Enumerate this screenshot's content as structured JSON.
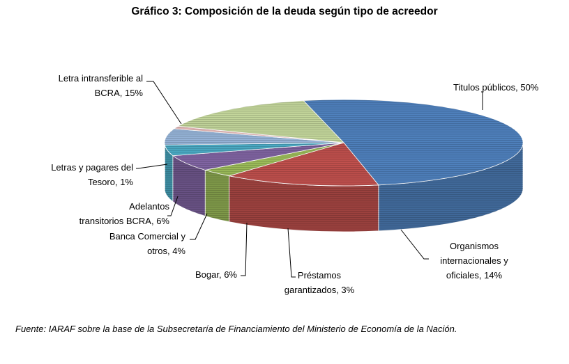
{
  "chart_data": {
    "type": "pie",
    "title": "Gráfico 3: Composición de la deuda según tipo de acreedor",
    "slices": [
      {
        "name": "Titulos públicos",
        "value": 50,
        "label": [
          "Titulos públicos, 50%"
        ],
        "color": "#4f81bd"
      },
      {
        "name": "Organismos internacionales y oficiales",
        "value": 14,
        "label": [
          "Organismos",
          "internacionales y",
          "oficiales, 14%"
        ],
        "color": "#c0504d"
      },
      {
        "name": "Préstamos garantizados",
        "value": 3,
        "label": [
          "Préstamos",
          "garantizados, 3%"
        ],
        "color": "#9bbb59"
      },
      {
        "name": "Bogar",
        "value": 6,
        "label": [
          "Bogar, 6%"
        ],
        "color": "#8064a2"
      },
      {
        "name": "Banca Comercial y otros",
        "value": 4,
        "label": [
          "Banca Comercial y",
          "otros, 4%"
        ],
        "color": "#4bacc6"
      },
      {
        "name": "Adelantos transitorios BCRA",
        "value": 6,
        "label": [
          "Adelantos",
          "transitorios BCRA, 6%"
        ],
        "color": "#95b3d7"
      },
      {
        "name": "Letras y pagares del Tesoro",
        "value": 1,
        "label": [
          "Letras y pagares del",
          "Tesoro, 1%"
        ],
        "color": "#e6b9b8"
      },
      {
        "name": "Letra intransferible al BCRA",
        "value": 15,
        "label": [
          "Letra intransferible al",
          "BCRA, 15%"
        ],
        "color": "#c3d69b"
      }
    ]
  },
  "source_note": "Fuente: IARAF sobre la base de la Subsecretaría de Financiamiento del Ministerio de Economía de la Nación."
}
